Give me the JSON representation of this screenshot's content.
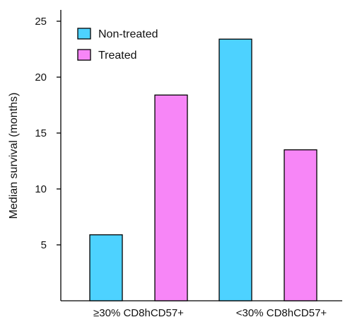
{
  "chart_data": {
    "type": "bar",
    "title": "",
    "xlabel": "",
    "ylabel": "Median survival (months)",
    "categories": [
      "≥30% CD8hCD57+",
      "<30% CD8hCD57+"
    ],
    "series": [
      {
        "name": "Non-treated",
        "color": "#4dd2ff",
        "values": [
          5.9,
          23.4
        ]
      },
      {
        "name": "Treated",
        "color": "#f786f7",
        "values": [
          18.4,
          13.5
        ]
      }
    ],
    "ylim": [
      0,
      25
    ],
    "yticks": [
      5,
      10,
      15,
      20,
      25
    ],
    "grid": false,
    "legend_position": "top-left"
  }
}
